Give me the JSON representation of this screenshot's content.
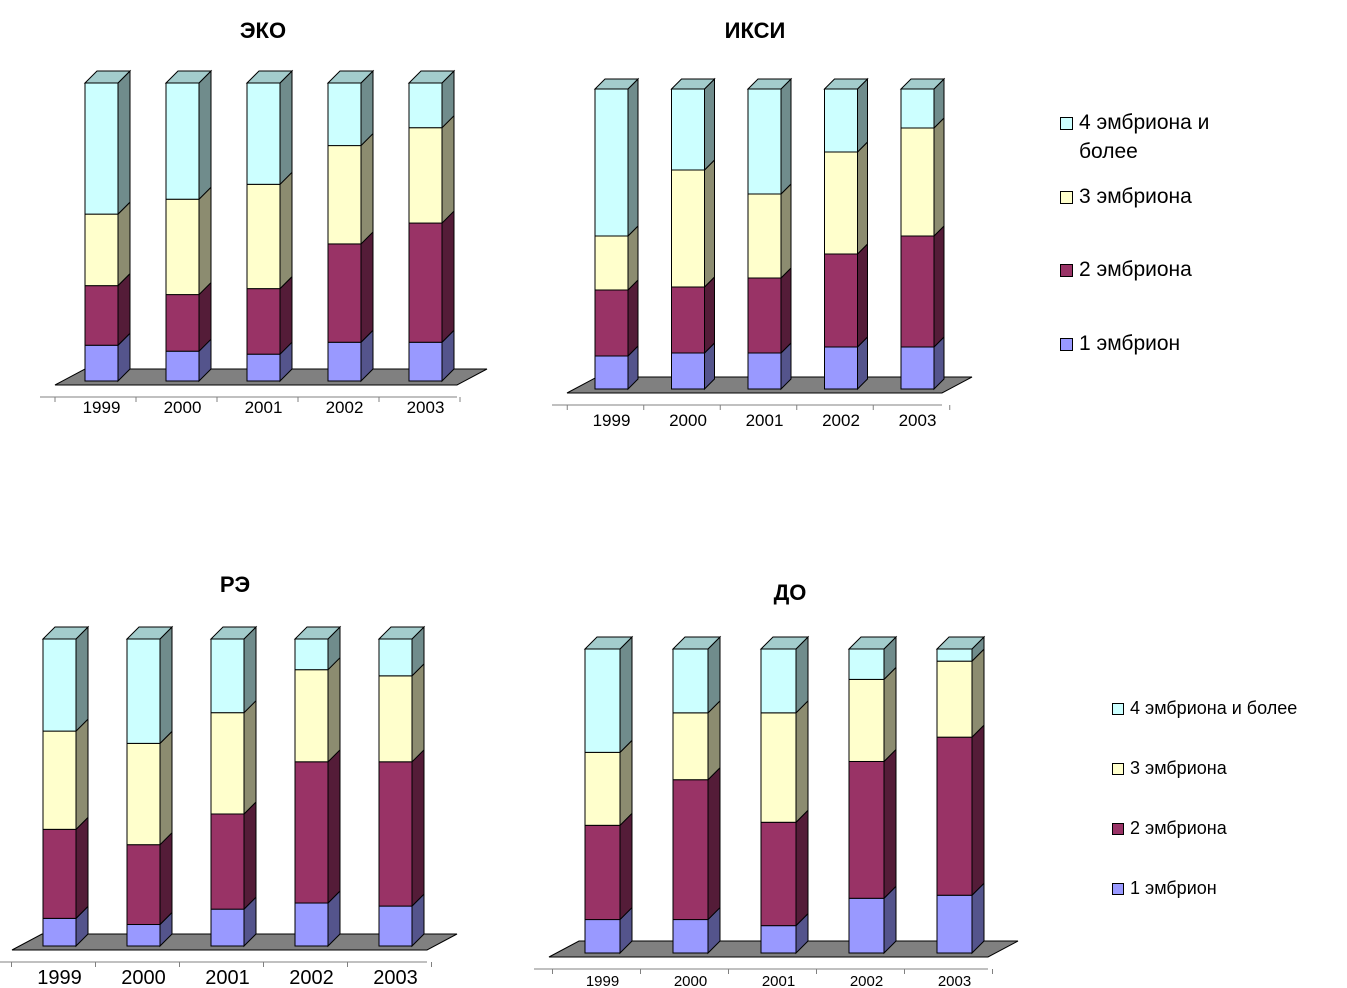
{
  "colors": {
    "s1": "#9999ff",
    "s2": "#993366",
    "s3": "#ffffcc",
    "s4": "#ccffff",
    "floor": "#808080"
  },
  "legend_top": [
    {
      "label": "4 эмбриона и более",
      "color": "#ccffff"
    },
    {
      "label": "3 эмбриона",
      "color": "#ffffcc"
    },
    {
      "label": "2 эмбриона",
      "color": "#993366"
    },
    {
      "label": "1 эмбрион",
      "color": "#9999ff"
    }
  ],
  "legend_bottom": [
    {
      "label": "4 эмбриона и более",
      "color": "#ccffff"
    },
    {
      "label": "3 эмбриона",
      "color": "#ffffcc"
    },
    {
      "label": "2 эмбриона",
      "color": "#993366"
    },
    {
      "label": "1 эмбрион",
      "color": "#9999ff"
    }
  ],
  "chart_data": [
    {
      "type": "bar",
      "stacked": "100%",
      "title": "ЭКО",
      "categories": [
        "1999",
        "2000",
        "2001",
        "2002",
        "2003"
      ],
      "series": [
        {
          "name": "1 эмбрион",
          "values": [
            12,
            10,
            9,
            13,
            13
          ]
        },
        {
          "name": "2 эмбриона",
          "values": [
            20,
            19,
            22,
            33,
            40
          ]
        },
        {
          "name": "3 эмбриона",
          "values": [
            24,
            32,
            35,
            33,
            32
          ]
        },
        {
          "name": "4 эмбриона и более",
          "values": [
            44,
            39,
            34,
            21,
            15
          ]
        }
      ]
    },
    {
      "type": "bar",
      "stacked": "100%",
      "title": "ИКСИ",
      "categories": [
        "1999",
        "2000",
        "2001",
        "2002",
        "2003"
      ],
      "series": [
        {
          "name": "1 эмбрион",
          "values": [
            11,
            12,
            12,
            14,
            14
          ]
        },
        {
          "name": "2 эмбриона",
          "values": [
            22,
            22,
            25,
            31,
            37
          ]
        },
        {
          "name": "3 эмбриона",
          "values": [
            18,
            39,
            28,
            34,
            36
          ]
        },
        {
          "name": "4 эмбриона и более",
          "values": [
            49,
            27,
            35,
            21,
            13
          ]
        }
      ]
    },
    {
      "type": "bar",
      "stacked": "100%",
      "title": "РЭ",
      "categories": [
        "1999",
        "2000",
        "2001",
        "2002",
        "2003"
      ],
      "series": [
        {
          "name": "1 эмбрион",
          "values": [
            9,
            7,
            12,
            14,
            13
          ]
        },
        {
          "name": "2 эмбриона",
          "values": [
            29,
            26,
            31,
            46,
            47
          ]
        },
        {
          "name": "3 эмбриона",
          "values": [
            32,
            33,
            33,
            30,
            28
          ]
        },
        {
          "name": "4 эмбриона и более",
          "values": [
            30,
            34,
            24,
            10,
            12
          ]
        }
      ]
    },
    {
      "type": "bar",
      "stacked": "100%",
      "title": "ДО",
      "categories": [
        "1999",
        "2000",
        "2001",
        "2002",
        "2003"
      ],
      "series": [
        {
          "name": "1 эмбрион",
          "values": [
            11,
            11,
            9,
            18,
            19
          ]
        },
        {
          "name": "2 эмбриона",
          "values": [
            31,
            46,
            34,
            45,
            52
          ]
        },
        {
          "name": "3 эмбриона",
          "values": [
            24,
            22,
            36,
            27,
            25
          ]
        },
        {
          "name": "4 эмбриона и более",
          "values": [
            34,
            21,
            21,
            10,
            4
          ]
        }
      ]
    }
  ]
}
